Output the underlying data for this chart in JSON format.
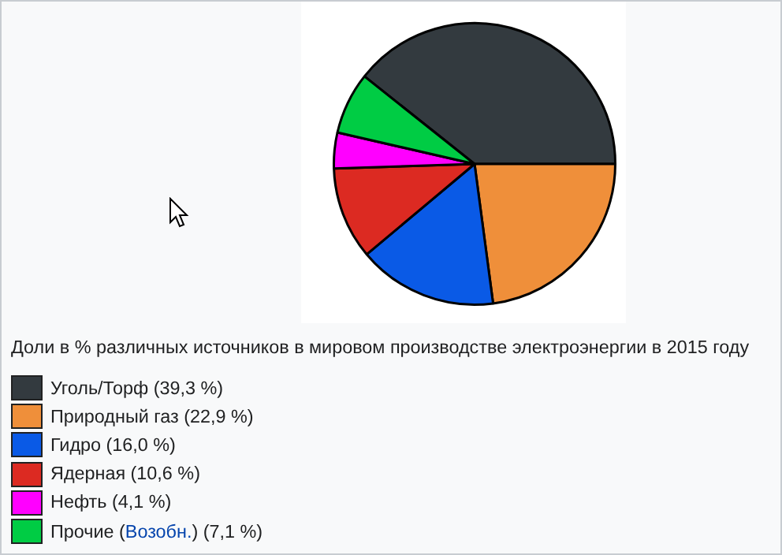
{
  "chart_data": {
    "type": "pie",
    "title": "Доли в % различных источников в мировом производстве электроэнергии в 2015 году",
    "categories": [
      "Уголь/Торф (39,3 %)",
      "Природный газ (22,9 %)",
      "Гидро (16,0 %)",
      "Ядерная (10,6 %)",
      "Нефть (4,1 %)",
      "Прочие (Возобн.) (7,1 %)"
    ],
    "values": [
      39.3,
      22.9,
      16.0,
      10.6,
      4.1,
      7.1
    ],
    "colors": [
      "#333a3f",
      "#ef8f3a",
      "#0a5ae6",
      "#dc2a22",
      "#ff00ff",
      "#00cc44"
    ],
    "legend": "bottom"
  }
}
